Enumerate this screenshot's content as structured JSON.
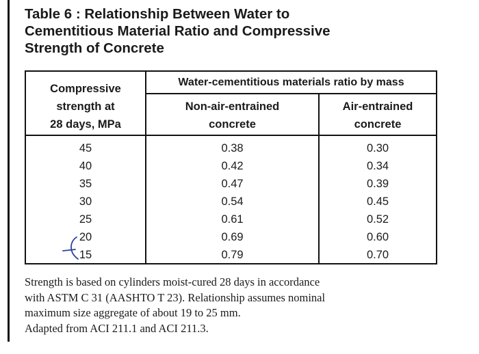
{
  "title": {
    "line1": "Table 6 :  Relationship Between Water to",
    "line2": "Cementitious Material Ratio and Compressive",
    "line3": "Strength of Concrete"
  },
  "table": {
    "header": {
      "strength_line1": "Compressive",
      "strength_line2": "strength at",
      "strength_line3": "28 days, MPa",
      "group": "Water-cementitious materials ratio by mass",
      "nonair_line1": "Non-air-entrained",
      "nonair_line2": "concrete",
      "air_line1": "Air-entrained",
      "air_line2": "concrete"
    },
    "rows": [
      {
        "strength": "45",
        "nonair": "0.38",
        "air": "0.30"
      },
      {
        "strength": "40",
        "nonair": "0.42",
        "air": "0.34"
      },
      {
        "strength": "35",
        "nonair": "0.47",
        "air": "0.39"
      },
      {
        "strength": "30",
        "nonair": "0.54",
        "air": "0.45"
      },
      {
        "strength": "25",
        "nonair": "0.61",
        "air": "0.52"
      },
      {
        "strength": "20",
        "nonair": "0.69",
        "air": "0.60"
      },
      {
        "strength": "15",
        "nonair": "0.79",
        "air": "0.70"
      }
    ]
  },
  "note": {
    "line1": "Strength is based on cylinders moist-cured 28 days in accordance",
    "line2": "with ASTM C 31 (AASHTO T 23). Relationship assumes nominal",
    "line3": "maximum size aggregate of about 19 to 25 mm.",
    "line4": "Adapted from ACI 211.1 and ACI 211.3."
  },
  "annotation": {
    "color": "#2a3f9e",
    "icon": "handwritten-pen-mark-icon"
  }
}
